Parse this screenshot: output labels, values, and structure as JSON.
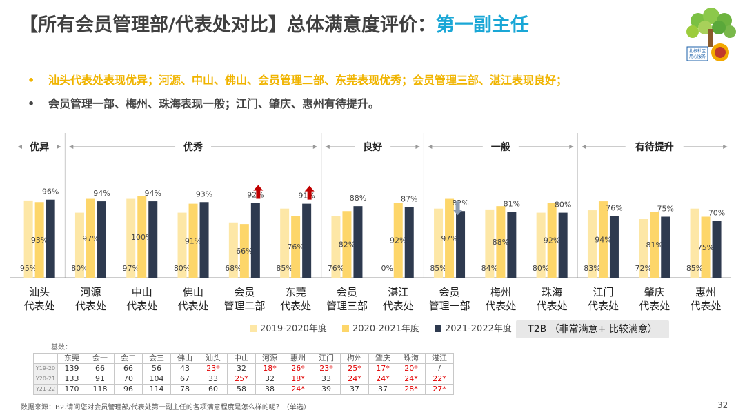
{
  "title": {
    "main": "【所有会员管理部/代表处对比】总体满意度评价：",
    "highlight": "第一副主任"
  },
  "logo": {
    "caption_line1": "扎根社区",
    "caption_line2": "用心服务"
  },
  "bullets": [
    {
      "dot": "•",
      "text": "汕头代表处表现优异；河源、中山、佛山、会员管理二部、东莞表现优秀；会员管理三部、湛江表现良好；"
    },
    {
      "dot": "•",
      "text": "会员管理一部、梅州、珠海表现一般；江门、肇庆、惠州有待提升。"
    }
  ],
  "chart_data": {
    "type": "bar",
    "ylim": [
      0,
      100
    ],
    "categories": [
      [
        "汕头",
        "代表处"
      ],
      [
        "河源",
        "代表处"
      ],
      [
        "中山",
        "代表处"
      ],
      [
        "佛山",
        "代表处"
      ],
      [
        "会员",
        "管理二部"
      ],
      [
        "东莞",
        "代表处"
      ],
      [
        "会员",
        "管理三部"
      ],
      [
        "湛江",
        "代表处"
      ],
      [
        "会员",
        "管理一部"
      ],
      [
        "梅州",
        "代表处"
      ],
      [
        "珠海",
        "代表处"
      ],
      [
        "江门",
        "代表处"
      ],
      [
        "肇庆",
        "代表处"
      ],
      [
        "惠州",
        "代表处"
      ]
    ],
    "series": [
      {
        "name": "2019-2020年度",
        "color": "#fde7a6",
        "values": [
          95,
          80,
          97,
          80,
          68,
          85,
          76,
          0,
          85,
          84,
          80,
          83,
          72,
          85
        ]
      },
      {
        "name": "2020-2021年度",
        "color": "#fdd66a",
        "values": [
          93,
          97,
          100,
          91,
          66,
          76,
          82,
          92,
          97,
          88,
          92,
          94,
          81,
          75
        ]
      },
      {
        "name": "2021-2022年度",
        "color": "#2e3a4f",
        "values": [
          96,
          94,
          94,
          93,
          92,
          91,
          88,
          87,
          82,
          81,
          80,
          76,
          75,
          70
        ]
      }
    ],
    "groups": [
      {
        "label": "优异",
        "start": 0,
        "end": 0
      },
      {
        "label": "优秀",
        "start": 1,
        "end": 5
      },
      {
        "label": "良好",
        "start": 6,
        "end": 7
      },
      {
        "label": "一般",
        "start": 8,
        "end": 10
      },
      {
        "label": "有待提升",
        "start": 11,
        "end": 13
      }
    ],
    "trend_arrows": [
      {
        "index": 4,
        "direction": "up",
        "color": "#c00000"
      },
      {
        "index": 5,
        "direction": "up",
        "color": "#c00000"
      },
      {
        "index": 8,
        "direction": "down",
        "color": "#8c9bb0"
      }
    ]
  },
  "t2b_label": "T2B （非常满意+ 比较满意）",
  "basis_label": "基数：",
  "base_table": {
    "headers": [
      "东莞",
      "会一",
      "会二",
      "会三",
      "佛山",
      "汕头",
      "中山",
      "河源",
      "惠州",
      "江门",
      "梅州",
      "肇庆",
      "珠海",
      "湛江"
    ],
    "rows": [
      {
        "label": "Y19-20",
        "cells": [
          "139",
          "66",
          "66",
          "56",
          "43",
          "23*",
          "32",
          "18*",
          "26*",
          "23*",
          "25*",
          "17*",
          "20*",
          "/"
        ]
      },
      {
        "label": "Y20-21",
        "cells": [
          "133",
          "91",
          "70",
          "104",
          "67",
          "33",
          "25*",
          "32",
          "18*",
          "33",
          "24*",
          "24*",
          "24*",
          "22*"
        ]
      },
      {
        "label": "Y21-22",
        "cells": [
          "170",
          "118",
          "96",
          "114",
          "78",
          "60",
          "58",
          "38",
          "24*",
          "39",
          "37",
          "37",
          "28*",
          "27*"
        ]
      }
    ]
  },
  "source": "数据来源：B2.请问您对会员管理部/代表处第一副主任的各项满意程度是怎么样的呢？（单选）",
  "page_number": "32"
}
